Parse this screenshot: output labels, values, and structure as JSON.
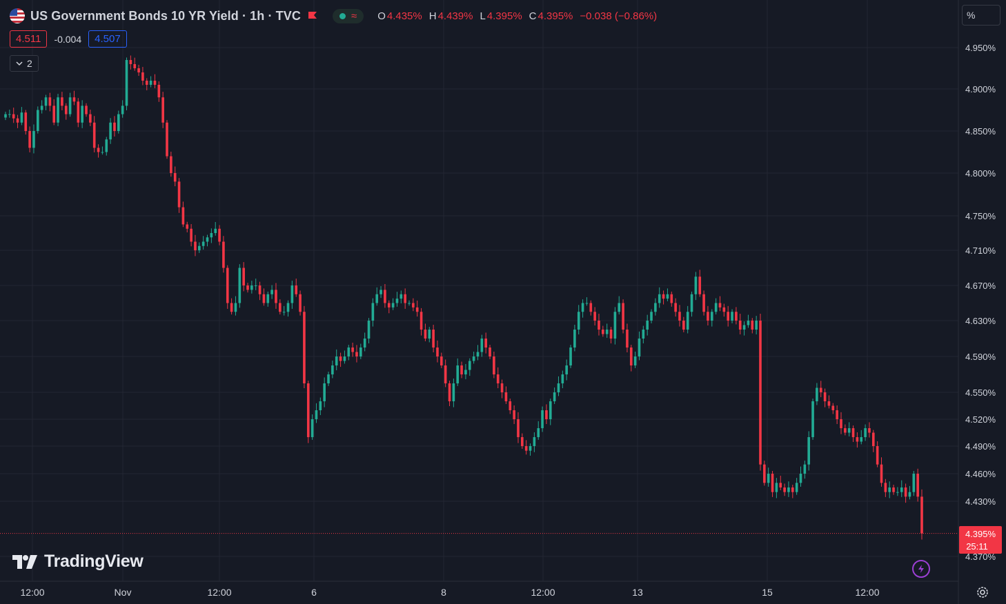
{
  "header": {
    "title": "US Government Bonds 10 YR Yield · 1h · TVC",
    "open_label": "O",
    "open_value": "4.435%",
    "high_label": "H",
    "high_value": "4.439%",
    "low_label": "L",
    "low_value": "4.395%",
    "close_label": "C",
    "close_value": "4.395%",
    "change": "−0.038 (−0.86%)",
    "market_status_icon": "green-dot-icon",
    "wave_icon": "wave-icon"
  },
  "quote": {
    "bid": "4.511",
    "spread": "-0.004",
    "ask": "4.507"
  },
  "collapse": {
    "label": "2"
  },
  "scale_button": {
    "label": "%"
  },
  "logo": {
    "text": "TradingView"
  },
  "price_tag": {
    "price": "4.395%",
    "countdown": "25:11"
  },
  "colors": {
    "up": "#22ab94",
    "down": "#f23645",
    "background": "#161a25",
    "grid": "#232632",
    "text": "#d1d4dc",
    "ask": "#2962ff"
  },
  "chart_data": {
    "type": "candlestick",
    "title": "US Government Bonds 10 YR Yield · 1h · TVC",
    "y_unit": "%",
    "y_tick_labels": [
      "4.950%",
      "4.900%",
      "4.850%",
      "4.800%",
      "4.750%",
      "4.710%",
      "4.670%",
      "4.630%",
      "4.590%",
      "4.550%",
      "4.520%",
      "4.490%",
      "4.460%",
      "4.430%",
      "4.370%"
    ],
    "x_tick_labels": [
      "12:00",
      "Nov",
      "12:00",
      "6",
      "8",
      "12:00",
      "13",
      "15",
      "12:00"
    ],
    "ylim": [
      4.36,
      4.99
    ],
    "grid": true,
    "last_price": 4.395,
    "series": [
      {
        "name": "US Government Bonds 10 YR Yield",
        "close": [
          4.87,
          4.87,
          4.865,
          4.86,
          4.872,
          4.85,
          4.83,
          4.85,
          4.875,
          4.88,
          4.89,
          4.88,
          4.86,
          4.89,
          4.88,
          4.87,
          4.89,
          4.885,
          4.86,
          4.88,
          4.87,
          4.86,
          4.83,
          4.825,
          4.825,
          4.84,
          4.86,
          4.85,
          4.87,
          4.88,
          4.935,
          4.93,
          4.925,
          4.92,
          4.91,
          4.905,
          4.91,
          4.905,
          4.89,
          4.86,
          4.82,
          4.8,
          4.79,
          4.76,
          4.74,
          4.735,
          4.72,
          4.71,
          4.715,
          4.72,
          4.725,
          4.73,
          4.735,
          4.72,
          4.69,
          4.65,
          4.64,
          4.65,
          4.69,
          4.67,
          4.665,
          4.67,
          4.67,
          4.66,
          4.65,
          4.66,
          4.665,
          4.65,
          4.64,
          4.64,
          4.65,
          4.67,
          4.66,
          4.64,
          4.56,
          4.5,
          4.52,
          4.53,
          4.54,
          4.56,
          4.57,
          4.58,
          4.59,
          4.585,
          4.59,
          4.6,
          4.595,
          4.59,
          4.6,
          4.61,
          4.63,
          4.65,
          4.66,
          4.665,
          4.65,
          4.645,
          4.65,
          4.655,
          4.66,
          4.65,
          4.65,
          4.645,
          4.64,
          4.62,
          4.61,
          4.62,
          4.6,
          4.59,
          4.58,
          4.56,
          4.54,
          4.56,
          4.58,
          4.57,
          4.575,
          4.585,
          4.59,
          4.595,
          4.61,
          4.6,
          4.59,
          4.57,
          4.56,
          4.55,
          4.54,
          4.53,
          4.52,
          4.5,
          4.49,
          4.485,
          4.49,
          4.5,
          4.51,
          4.53,
          4.52,
          4.54,
          4.55,
          4.56,
          4.57,
          4.58,
          4.6,
          4.62,
          4.64,
          4.65,
          4.65,
          4.64,
          4.63,
          4.62,
          4.615,
          4.62,
          4.61,
          4.64,
          4.65,
          4.62,
          4.6,
          4.58,
          4.59,
          4.61,
          4.62,
          4.63,
          4.64,
          4.65,
          4.66,
          4.655,
          4.66,
          4.65,
          4.64,
          4.63,
          4.62,
          4.64,
          4.66,
          4.68,
          4.66,
          4.64,
          4.63,
          4.64,
          4.65,
          4.645,
          4.64,
          4.63,
          4.64,
          4.63,
          4.62,
          4.625,
          4.63,
          4.62,
          4.63,
          4.47,
          4.45,
          4.46,
          4.44,
          4.45,
          4.445,
          4.44,
          4.445,
          4.44,
          4.45,
          4.46,
          4.47,
          4.5,
          4.54,
          4.555,
          4.55,
          4.54,
          4.535,
          4.53,
          4.52,
          4.51,
          4.505,
          4.51,
          4.5,
          4.495,
          4.5,
          4.51,
          4.505,
          4.49,
          4.47,
          4.45,
          4.44,
          4.445,
          4.44,
          4.44,
          4.445,
          4.435,
          4.44,
          4.46,
          4.435,
          4.395
        ],
        "note": "hourly closes read from the candles, left to right; opens, highs and lows estimated from candle bodies and wicks"
      }
    ]
  }
}
